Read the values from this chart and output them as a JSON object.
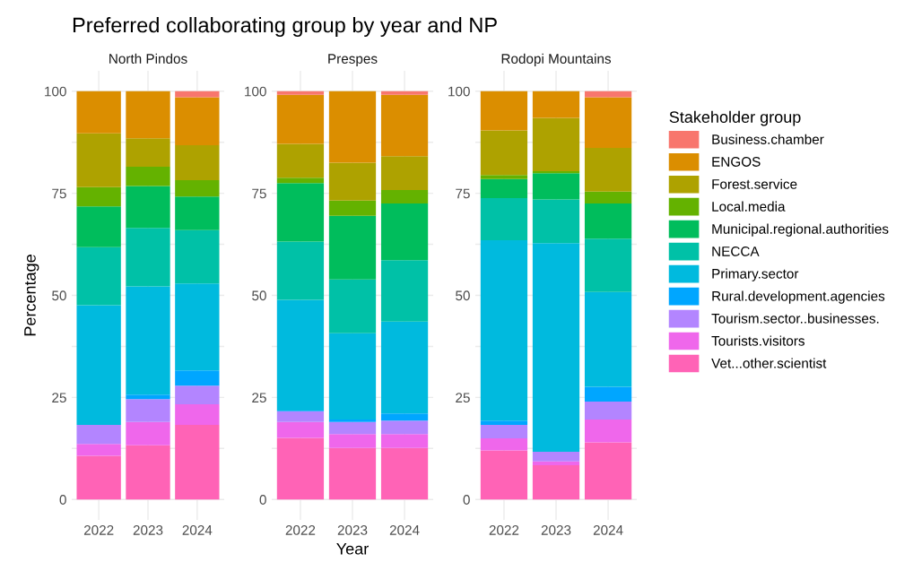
{
  "chart_data": [
    {
      "type": "bar",
      "stacked": true,
      "title": "Preferred collaborating group by year and NP",
      "subtitle": "North Pindos",
      "ylabel": "Percentage",
      "categories": [
        "2022",
        "2023",
        "2024"
      ],
      "ylim": [
        -5,
        105
      ],
      "yticks": [
        0,
        {
          "value": 12.5,
          "label": null
        },
        25,
        {
          "value": 37.5,
          "label": null
        },
        50,
        {
          "value": 62.5,
          "label": null
        },
        75,
        {
          "value": 87.5,
          "label": null
        },
        100
      ],
      "grid": true,
      "legend": false,
      "series": [
        {
          "color": "#ff63b6",
          "values": [
            10.7,
            13.3,
            18.3
          ]
        },
        {
          "color": "#ef67eb",
          "values": [
            2.9,
            5.7,
            5.0
          ]
        },
        {
          "color": "#b385ff",
          "values": [
            4.7,
            5.6,
            4.6
          ]
        },
        {
          "color": "#00a6ff",
          "values": [
            0,
            1.1,
            3.7
          ]
        },
        {
          "color": "#00bade",
          "values": [
            29.3,
            26.5,
            21.3
          ]
        },
        {
          "color": "#00c1a7",
          "values": [
            14.2,
            14.3,
            13.1
          ]
        },
        {
          "color": "#00bd5c",
          "values": [
            10.0,
            10.3,
            8.2
          ]
        },
        {
          "color": "#64b200",
          "values": [
            4.7,
            4.7,
            4.0
          ]
        },
        {
          "color": "#aea200",
          "values": [
            13.2,
            7.0,
            8.6
          ]
        },
        {
          "color": "#db8e00",
          "values": [
            10.3,
            11.5,
            11.7
          ]
        },
        {
          "color": "#f8766d",
          "values": [
            0,
            0,
            1.5
          ]
        }
      ]
    },
    {
      "type": "bar",
      "stacked": true,
      "subtitle": "Prespes",
      "xlabel": "Year",
      "categories": [
        "2022",
        "2023",
        "2024"
      ],
      "ylim": [
        -5,
        105
      ],
      "yticks": [
        0,
        {
          "value": 12.5,
          "label": null
        },
        25,
        {
          "value": 37.5,
          "label": null
        },
        50,
        {
          "value": 62.5,
          "label": null
        },
        75,
        {
          "value": 87.5,
          "label": null
        },
        100
      ],
      "grid": true,
      "legend": false,
      "series": [
        {
          "color": "#ff63b6",
          "values": [
            15.1,
            12.6,
            12.6
          ]
        },
        {
          "color": "#ef67eb",
          "values": [
            3.9,
            3.4,
            3.4
          ]
        },
        {
          "color": "#b385ff",
          "values": [
            2.6,
            3.0,
            3.3
          ]
        },
        {
          "color": "#00a6ff",
          "values": [
            0.2,
            0.6,
            1.8
          ]
        },
        {
          "color": "#00bade",
          "values": [
            27.1,
            21.1,
            22.5
          ]
        },
        {
          "color": "#00c1a7",
          "values": [
            14.3,
            13.2,
            15.0
          ]
        },
        {
          "color": "#00bd5c",
          "values": [
            14.3,
            15.6,
            13.9
          ]
        },
        {
          "color": "#64b200",
          "values": [
            1.3,
            3.7,
            3.3
          ]
        },
        {
          "color": "#aea200",
          "values": [
            8.3,
            9.3,
            8.3
          ]
        },
        {
          "color": "#db8e00",
          "values": [
            12.0,
            17.5,
            15.0
          ]
        },
        {
          "color": "#f8766d",
          "values": [
            0.9,
            0,
            0.9
          ]
        }
      ]
    },
    {
      "type": "bar",
      "stacked": true,
      "subtitle": "Rodopi Mountains",
      "legend_title": "Stakeholder group",
      "categories": [
        "2022",
        "2023",
        "2024"
      ],
      "ylim": [
        -5,
        105
      ],
      "yticks": [
        0,
        {
          "value": 12.5,
          "label": null
        },
        25,
        {
          "value": 37.5,
          "label": null
        },
        50,
        {
          "value": 62.5,
          "label": null
        },
        75,
        {
          "value": 87.5,
          "label": null
        },
        100
      ],
      "grid": true,
      "legend": "right",
      "series": [
        {
          "name": "Vet...other.scientist",
          "color": "#ff63b6",
          "values": [
            12.0,
            8.4,
            14.0
          ]
        },
        {
          "name": "Tourists.visitors",
          "color": "#ef67eb",
          "values": [
            3.0,
            0.9,
            5.6
          ]
        },
        {
          "name": "Tourism.sector..businesses.",
          "color": "#b385ff",
          "values": [
            3.3,
            2.4,
            4.4
          ]
        },
        {
          "name": "Rural.development.agencies",
          "color": "#00a6ff",
          "values": [
            1.0,
            0,
            3.6
          ]
        },
        {
          "name": "Primary.sector",
          "color": "#00bade",
          "values": [
            44.2,
            51.1,
            23.2
          ]
        },
        {
          "name": "NECCA",
          "color": "#00c1a7",
          "values": [
            10.3,
            10.7,
            13.1
          ]
        },
        {
          "name": "Municipal.regional.authorities",
          "color": "#00bd5c",
          "values": [
            4.7,
            6.4,
            8.6
          ]
        },
        {
          "name": "Local.media",
          "color": "#64b200",
          "values": [
            1.0,
            0.5,
            2.9
          ]
        },
        {
          "name": "Forest.service",
          "color": "#aea200",
          "values": [
            10.9,
            13.1,
            10.7
          ]
        },
        {
          "name": "ENGOS",
          "color": "#db8e00",
          "values": [
            9.6,
            6.5,
            12.4
          ]
        },
        {
          "name": "Business.chamber",
          "color": "#f8766d",
          "values": [
            0,
            0,
            1.5
          ]
        }
      ]
    }
  ]
}
